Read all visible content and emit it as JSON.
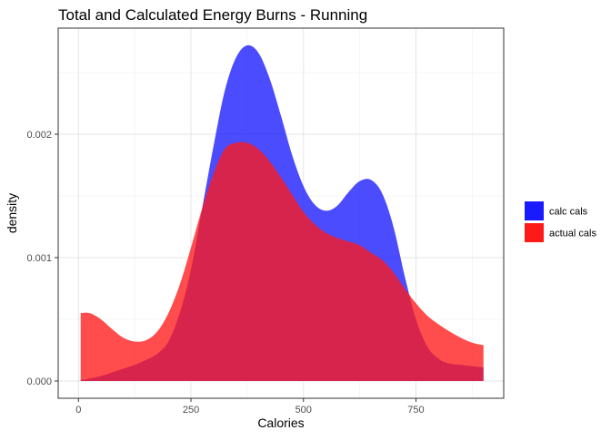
{
  "chart_data": {
    "type": "area",
    "title": "Total and Calculated Energy Burns - Running",
    "xlabel": "Calories",
    "ylabel": "density",
    "xlim": [
      -45,
      945
    ],
    "ylim": [
      -0.00014,
      0.00286
    ],
    "x_ticks": [
      0,
      250,
      500,
      750
    ],
    "x_tick_labels": [
      "0",
      "250",
      "500",
      "750"
    ],
    "y_ticks": [
      0,
      0.001,
      0.002
    ],
    "y_tick_labels": [
      "0.000",
      "0.001",
      "0.002"
    ],
    "grid": true,
    "legend_position": "right",
    "x": [
      5,
      25,
      50,
      75,
      100,
      125,
      150,
      175,
      200,
      225,
      250,
      275,
      300,
      325,
      350,
      375,
      400,
      425,
      450,
      475,
      500,
      525,
      550,
      575,
      600,
      625,
      650,
      675,
      700,
      725,
      750,
      775,
      800,
      825,
      850,
      875,
      900
    ],
    "series": [
      {
        "name": "calc cals",
        "color": "#1A1AFF",
        "values": [
          6.6e-06,
          2e-05,
          4e-05,
          7e-05,
          0.0001,
          0.00013,
          0.00017,
          0.00022,
          0.00032,
          0.00055,
          0.0009,
          0.0014,
          0.0019,
          0.00235,
          0.00262,
          0.00272,
          0.00266,
          0.00245,
          0.00215,
          0.00183,
          0.00158,
          0.00143,
          0.00138,
          0.00142,
          0.00153,
          0.00162,
          0.00163,
          0.00152,
          0.00125,
          0.00085,
          0.0005,
          0.00028,
          0.00018,
          0.00014,
          0.00013,
          0.00012,
          0.00011
        ]
      },
      {
        "name": "actual cals",
        "color": "#FF1A1A",
        "values": [
          0.00055,
          0.00055,
          0.0005,
          0.00042,
          0.00035,
          0.00032,
          0.00033,
          0.0004,
          0.00055,
          0.00078,
          0.00108,
          0.0014,
          0.00168,
          0.00188,
          0.00193,
          0.00193,
          0.00188,
          0.00178,
          0.00165,
          0.00151,
          0.00137,
          0.00127,
          0.0012,
          0.00116,
          0.00113,
          0.0011,
          0.00104,
          0.00098,
          0.00088,
          0.00075,
          0.00063,
          0.00053,
          0.00046,
          0.0004,
          0.00035,
          0.00031,
          0.00029
        ]
      }
    ]
  }
}
